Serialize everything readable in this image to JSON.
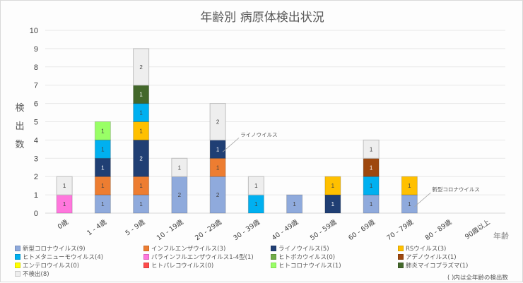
{
  "chart_data": {
    "type": "bar",
    "stacked": true,
    "title": "年齢別 病原体検出状況",
    "xlabel": "年齢",
    "ylabel": "検出数",
    "ylim": [
      0,
      10
    ],
    "yticks": [
      0,
      1,
      2,
      3,
      4,
      5,
      6,
      7,
      8,
      9,
      10
    ],
    "grid": true,
    "legend_position": "bottom",
    "categories": [
      "0歳",
      "1 - 4歳",
      "5 - 9歳",
      "10 - 19歳",
      "20 - 29歳",
      "30 - 39歳",
      "40 - 49歳",
      "50 - 59歳",
      "60 - 69歳",
      "70 - 79歳",
      "80 - 89歳",
      "90歳以上"
    ],
    "series": [
      {
        "name": "新型コロナウイルス",
        "total": 9,
        "color": "#8faadc",
        "values": [
          0,
          1,
          1,
          2,
          2,
          0,
          1,
          0,
          1,
          1,
          0,
          0
        ]
      },
      {
        "name": "インフルエンザウイルス",
        "total": 3,
        "color": "#ed7d31",
        "values": [
          0,
          1,
          1,
          0,
          1,
          0,
          0,
          0,
          0,
          0,
          0,
          0
        ]
      },
      {
        "name": "ライノウイルス",
        "total": 5,
        "color": "#203f74",
        "values": [
          0,
          1,
          2,
          0,
          1,
          0,
          0,
          1,
          0,
          0,
          0,
          0
        ]
      },
      {
        "name": "RSウイルス",
        "total": 3,
        "color": "#ffc000",
        "values": [
          0,
          0,
          1,
          0,
          0,
          0,
          0,
          1,
          0,
          1,
          0,
          0
        ]
      },
      {
        "name": "ヒトメタニューモウイルス",
        "total": 4,
        "color": "#00b0f0",
        "values": [
          0,
          1,
          1,
          0,
          0,
          1,
          0,
          0,
          1,
          0,
          0,
          0
        ]
      },
      {
        "name": "パラインフルエンザウイルス1-4型",
        "total": 1,
        "color": "#ff77dd",
        "values": [
          1,
          0,
          0,
          0,
          0,
          0,
          0,
          0,
          0,
          0,
          0,
          0
        ]
      },
      {
        "name": "ヒトボカウイルス",
        "total": 0,
        "color": "#70ad47",
        "values": [
          0,
          0,
          0,
          0,
          0,
          0,
          0,
          0,
          0,
          0,
          0,
          0
        ]
      },
      {
        "name": "アデノウイルス",
        "total": 1,
        "color": "#9e480e",
        "values": [
          0,
          0,
          0,
          0,
          0,
          0,
          0,
          0,
          1,
          0,
          0,
          0
        ]
      },
      {
        "name": "エンテロウイルス",
        "total": 0,
        "color": "#ffff00",
        "values": [
          0,
          0,
          0,
          0,
          0,
          0,
          0,
          0,
          0,
          0,
          0,
          0
        ]
      },
      {
        "name": "ヒトパレコウイルス",
        "total": 0,
        "color": "#ff4b4b",
        "values": [
          0,
          0,
          0,
          0,
          0,
          0,
          0,
          0,
          0,
          0,
          0,
          0
        ]
      },
      {
        "name": "ヒトコロナウイルス",
        "total": 1,
        "color": "#99ff66",
        "values": [
          0,
          1,
          0,
          0,
          0,
          0,
          0,
          0,
          0,
          0,
          0,
          0
        ]
      },
      {
        "name": "肺炎マイコプラズマ",
        "total": 1,
        "color": "#43682b",
        "values": [
          0,
          0,
          1,
          0,
          0,
          0,
          0,
          0,
          0,
          0,
          0,
          0
        ]
      },
      {
        "name": "不検出",
        "total": 8,
        "color": "#eeeeee",
        "values": [
          1,
          0,
          2,
          1,
          2,
          1,
          0,
          0,
          1,
          0,
          0,
          0
        ]
      }
    ],
    "annotations": [
      {
        "text": "ライノウイルス",
        "category": "20 - 29歳",
        "series": "ライノウイルス"
      },
      {
        "text": "新型コロナウイルス",
        "category": "70 - 79歳",
        "series": "新型コロナウイルス"
      }
    ],
    "legend_entries": [
      "新型コロナウイルス(9)",
      "インフルエンザウイルス(3)",
      "ライノウイルス(5)",
      "RSウイルス(3)",
      "ヒトメタニューモウイルス(4)",
      "パラインフルエンザウイルス1-4型(1)",
      "ヒトボカウイルス(0)",
      "アデノウイルス(1)",
      "エンテロウイルス(0)",
      "ヒトパレコウイルス(0)",
      "ヒトコロナウイルス(1)",
      "肺炎マイコプラズマ(1)",
      "不検出(8)"
    ],
    "note": "( )内は全年齢の検出数"
  }
}
